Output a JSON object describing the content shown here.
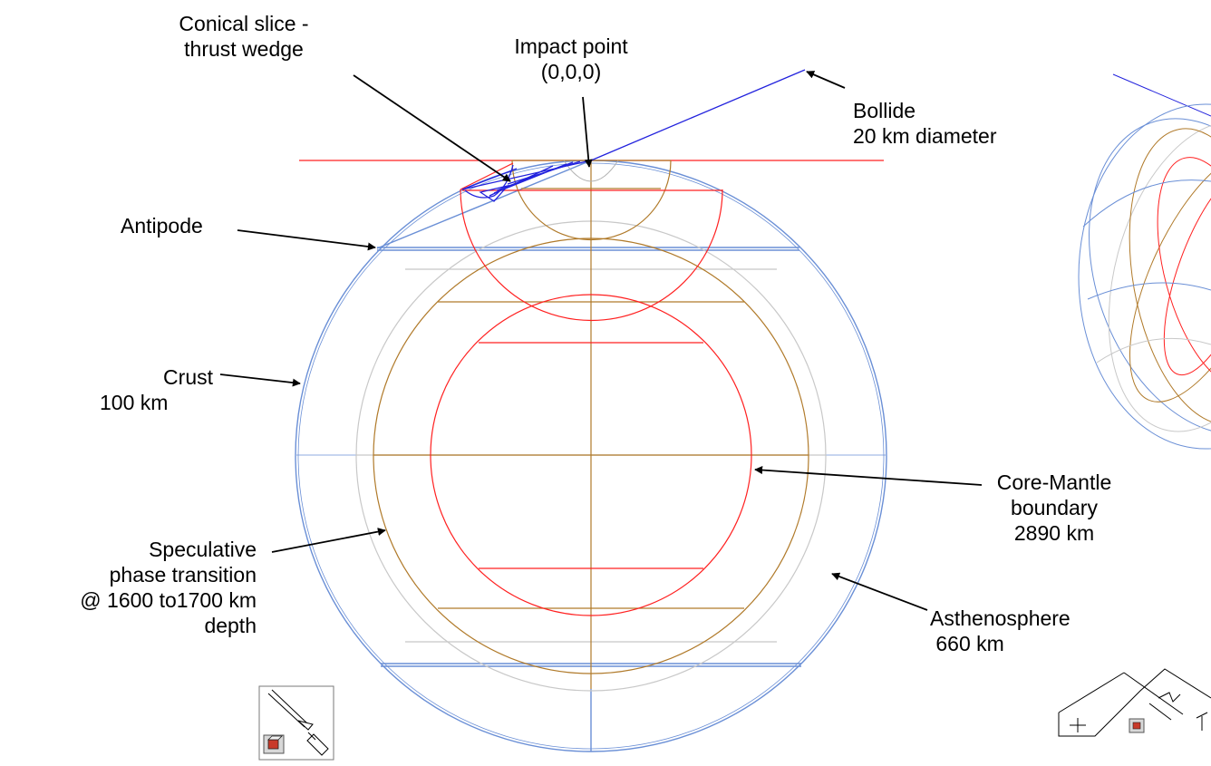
{
  "labels": {
    "conical_slice": [
      "Conical slice -",
      "thrust wedge"
    ],
    "impact_point": [
      "Impact point",
      "(0,0,0)"
    ],
    "bollide": [
      "Bollide",
      "20 km diameter"
    ],
    "antipode": [
      "Antipode"
    ],
    "crust": [
      "Crust",
      "100 km"
    ],
    "core_mantle": [
      "Core-Mantle",
      "boundary",
      "2890 km"
    ],
    "phase_transition": [
      "Speculative",
      "phase transition",
      "@ 1600 to1700 km",
      "depth"
    ],
    "asthenosphere": [
      "Asthenosphere",
      " 660 km"
    ]
  },
  "colors": {
    "crust": "#6a8fd6",
    "asthenosphere": "#c8c8c8",
    "phase_transition": "#b07a2a",
    "core_mantle": "#ff2020",
    "bollide_path": "#2222dd",
    "impact_plane": "#ff2020",
    "arrow": "#000000"
  },
  "icons": [
    "pen-tool-icon",
    "view-cube-icon",
    "axis-triad-icon"
  ]
}
